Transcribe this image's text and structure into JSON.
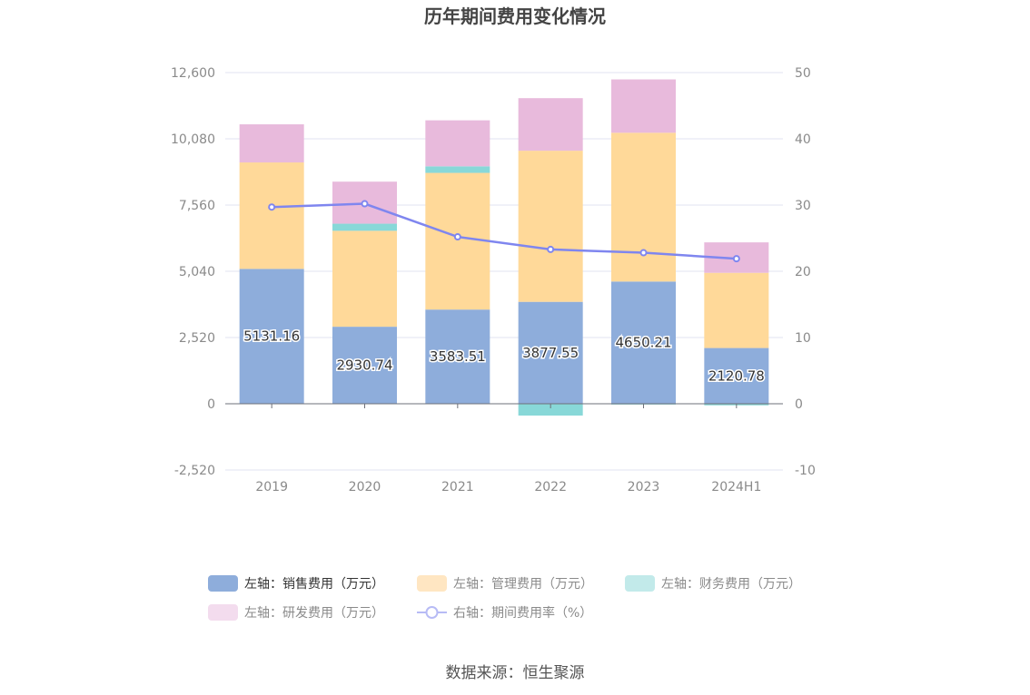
{
  "chart_data": {
    "type": "bar",
    "title": "历年期间费用变化情况",
    "categories": [
      "2019",
      "2020",
      "2021",
      "2022",
      "2023",
      "2024H1"
    ],
    "series": [
      {
        "name": "左轴：销售费用（万元）",
        "axis": "left",
        "color": "#8eaddb",
        "values": [
          5131.16,
          2930.74,
          3583.51,
          3877.55,
          4650.21,
          2120.78
        ]
      },
      {
        "name": "左轴：管理费用（万元）",
        "axis": "left",
        "color": "#ffd999",
        "values": [
          4050,
          3650,
          5200,
          5750,
          5660,
          2860
        ]
      },
      {
        "name": "左轴：财务费用（万元）",
        "axis": "left",
        "color": "#88d8d8",
        "values": [
          0,
          270,
          250,
          -450,
          -30,
          -60
        ]
      },
      {
        "name": "左轴：研发费用（万元）",
        "axis": "left",
        "color": "#e8badc",
        "values": [
          1450,
          1600,
          1750,
          2000,
          2030,
          1160
        ]
      },
      {
        "name": "右轴：期间费用率（%）",
        "axis": "right",
        "type": "line",
        "color": "#7f86ef",
        "values": [
          29.7,
          30.2,
          25.2,
          23.3,
          22.8,
          21.9
        ]
      }
    ],
    "left_axis": {
      "min": -2520,
      "max": 12600,
      "ticks": [
        12600,
        10080,
        7560,
        5040,
        2520,
        0,
        -2520
      ],
      "tick_labels": [
        "12,600",
        "10,080",
        "7,560",
        "5,040",
        "2,520",
        "0",
        "-2,520"
      ]
    },
    "right_axis": {
      "min": -10,
      "max": 50,
      "ticks": [
        50,
        40,
        30,
        20,
        10,
        0,
        -10
      ],
      "tick_labels": [
        "50",
        "40",
        "30",
        "20",
        "10",
        "0",
        "-10"
      ]
    },
    "data_labels": [
      "5131.16",
      "2930.74",
      "3583.51",
      "3877.55",
      "4650.21",
      "2120.78"
    ],
    "grid": true,
    "legend_position": "bottom"
  },
  "legend": {
    "items": [
      {
        "label": "左轴：销售费用（万元）",
        "color": "#8eaddb",
        "active": true
      },
      {
        "label": "左轴：管理费用（万元）",
        "color": "#ffe6c2",
        "active": false
      },
      {
        "label": "左轴：财务费用（万元）",
        "color": "#c2eaea",
        "active": false
      },
      {
        "label": "左轴：研发费用（万元）",
        "color": "#f3dcee",
        "active": false
      },
      {
        "label": "右轴：期间费用率（%）",
        "color": "#b7bbf5",
        "active": false
      }
    ]
  },
  "source": "数据来源：恒生聚源"
}
